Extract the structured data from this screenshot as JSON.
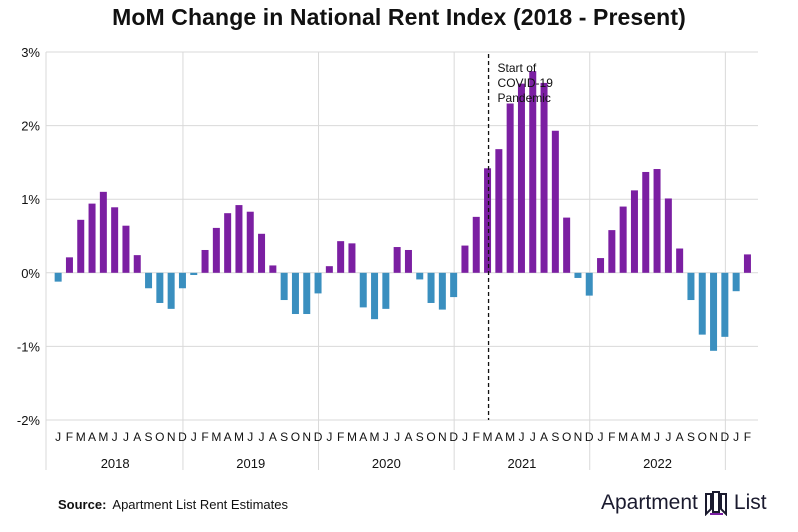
{
  "title": "MoM Change in National Rent Index (2018 - Present)",
  "footer": {
    "source_label": "Source:",
    "source_text": "Apartment List Rent Estimates",
    "brand_left": "Apartment",
    "brand_right": "List"
  },
  "colors": {
    "positive": "#7b1fa2",
    "negative": "#3a8fbf",
    "grid": "#d9d9d9",
    "axis": "#666666"
  },
  "chart_data": {
    "type": "bar",
    "title": "MoM Change in National Rent Index (2018 - Present)",
    "ylim": [
      -2,
      3
    ],
    "yticks": [
      {
        "value": 3,
        "label": "3%"
      },
      {
        "value": 2,
        "label": "2%"
      },
      {
        "value": 1,
        "label": "1%"
      },
      {
        "value": 0,
        "label": "0%"
      },
      {
        "value": -1,
        "label": "-1%"
      },
      {
        "value": -2,
        "label": "-2%"
      }
    ],
    "grid": true,
    "years": [
      "2018",
      "2019",
      "2020",
      "2021",
      "2022"
    ],
    "month_labels": [
      "J",
      "F",
      "M",
      "A",
      "M",
      "J",
      "J",
      "A",
      "S",
      "O",
      "N",
      "D",
      "J",
      "F",
      "M",
      "A",
      "M",
      "J",
      "J",
      "A",
      "S",
      "O",
      "N",
      "D",
      "J",
      "F",
      "M",
      "A",
      "M",
      "J",
      "J",
      "A",
      "S",
      "O",
      "N",
      "D",
      "J",
      "F",
      "M",
      "A",
      "M",
      "J",
      "J",
      "A",
      "S",
      "O",
      "N",
      "D",
      "J",
      "F",
      "M",
      "A",
      "M",
      "J",
      "J",
      "A",
      "S",
      "O",
      "N",
      "D",
      "J",
      "F"
    ],
    "values": [
      -0.12,
      0.21,
      0.72,
      0.94,
      1.1,
      0.89,
      0.64,
      0.24,
      -0.21,
      -0.41,
      -0.49,
      -0.21,
      -0.03,
      0.31,
      0.61,
      0.81,
      0.92,
      0.83,
      0.53,
      0.1,
      -0.37,
      -0.56,
      -0.56,
      -0.28,
      0.09,
      0.43,
      0.4,
      -0.47,
      -0.63,
      -0.49,
      0.35,
      0.31,
      -0.09,
      -0.41,
      -0.5,
      -0.33,
      0.37,
      0.76,
      1.42,
      1.68,
      2.3,
      2.57,
      2.74,
      2.58,
      1.93,
      0.75,
      -0.07,
      -0.31,
      0.2,
      0.58,
      0.9,
      1.12,
      1.37,
      1.41,
      1.01,
      0.33,
      -0.37,
      -0.84,
      -1.06,
      -0.87,
      -0.25,
      0.25
    ],
    "annotation": {
      "lines": [
        "Start of",
        "COVID-19",
        "Pandemic"
      ],
      "index": 38.5
    }
  }
}
